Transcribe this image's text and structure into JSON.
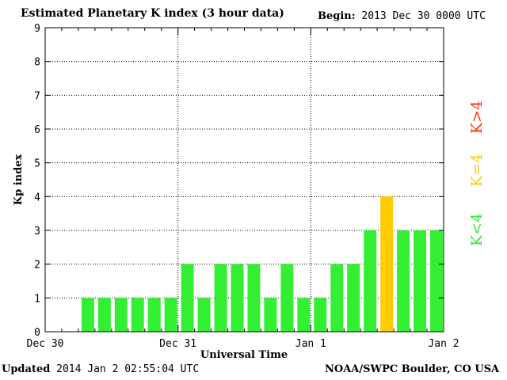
{
  "header": {
    "title": "Estimated Planetary K index (3 hour data)",
    "begin_label": "Begin:",
    "begin_value": "2013 Dec 30 0000 UTC"
  },
  "footer": {
    "updated_label": "Updated",
    "updated_value": "2014 Jan  2 02:55:04 UTC",
    "credit": "NOAA/SWPC Boulder, CO USA"
  },
  "legend": [
    {
      "label": "K<4",
      "color": "#33ee33"
    },
    {
      "label": "K=4",
      "color": "#ffcc00"
    },
    {
      "label": "K>4",
      "color": "#ff3300"
    }
  ],
  "chart_data": {
    "type": "bar",
    "title": "Estimated Planetary K index (3 hour data)",
    "xlabel": "Universal Time",
    "ylabel": "Kp index",
    "ylim": [
      0,
      9
    ],
    "yticks": [
      0,
      1,
      2,
      3,
      4,
      5,
      6,
      7,
      8,
      9
    ],
    "x_tick_labels": [
      "Dec 30",
      "Dec 31",
      "Jan 1",
      "Jan 2"
    ],
    "slots_per_day": 8,
    "days": 3,
    "grid": true,
    "values": [
      null,
      null,
      1,
      1,
      1,
      1,
      1,
      1,
      2,
      1,
      2,
      2,
      2,
      1,
      2,
      1,
      1,
      2,
      2,
      3,
      4,
      3,
      3,
      3
    ],
    "color_rules": {
      "below_4": "#33ee33",
      "equal_4": "#ffcc00",
      "above_4": "#ff3300"
    }
  }
}
